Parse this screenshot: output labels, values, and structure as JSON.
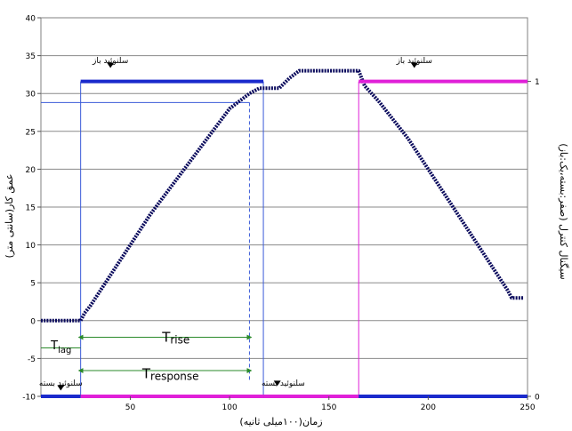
{
  "chart_data": {
    "type": "line",
    "xlabel": "زمان(۱۰۰میلی ثانیه)",
    "ylabel": "عمق کار(سانتی متر)",
    "y2label": "سیگنال کنترل (صفر:بسته،یک:باز)",
    "x_ticks": [
      "50",
      "100",
      "150",
      "200",
      "250"
    ],
    "y_ticks": [
      "-10",
      "-5",
      "0",
      "5",
      "10",
      "15",
      "20",
      "25",
      "30",
      "35",
      "40"
    ],
    "y2_ticks": [
      "0",
      "1"
    ],
    "xlim": [
      5,
      250
    ],
    "ylim": [
      -10,
      40
    ],
    "grid": true,
    "series": [
      {
        "color": "#0a0a5c",
        "x": [
          5,
          10,
          15,
          20,
          25,
          27,
          30,
          35,
          40,
          50,
          60,
          70,
          80,
          90,
          100,
          110,
          115,
          117,
          120,
          125,
          130,
          135,
          140,
          150,
          160,
          165,
          168,
          175,
          190,
          210,
          230,
          240,
          242,
          245,
          248
        ],
        "y": [
          0,
          0,
          0,
          0,
          0,
          1,
          2,
          4,
          6,
          10,
          14,
          17.5,
          21,
          24.5,
          28,
          30,
          30.7,
          30.7,
          30.7,
          30.7,
          32,
          33,
          33,
          33,
          33,
          33,
          31,
          29,
          24,
          16,
          8,
          4,
          3,
          3,
          3
        ]
      },
      {
        "color": "#1a2acc",
        "step": true,
        "x": [
          5,
          25,
          25,
          117,
          117,
          250
        ],
        "y2": [
          0,
          0,
          1,
          1,
          0,
          0
        ]
      },
      {
        "color": "#e020d8",
        "step": true,
        "x": [
          25,
          117,
          165,
          165,
          250
        ],
        "y2": [
          0,
          0,
          0,
          1,
          1
        ]
      }
    ],
    "annotations": [
      {
        "text": "سلنوئید باز",
        "x": 40,
        "y": 34
      },
      {
        "text": "سلنوئید باز",
        "x": 193,
        "y": 34
      },
      {
        "text": "سلنوئید بسته",
        "x": 127,
        "y": -8.6
      },
      {
        "text": "سلنوئید بسته",
        "x": 15,
        "y": -8.6
      },
      {
        "text": "T",
        "sub": "lag",
        "x": 10,
        "y": -3.8
      },
      {
        "text": "T",
        "sub": "rise",
        "x": 66,
        "y": -2.8
      },
      {
        "text": "T",
        "sub": "response",
        "x": 56,
        "y": -7.6
      }
    ]
  }
}
